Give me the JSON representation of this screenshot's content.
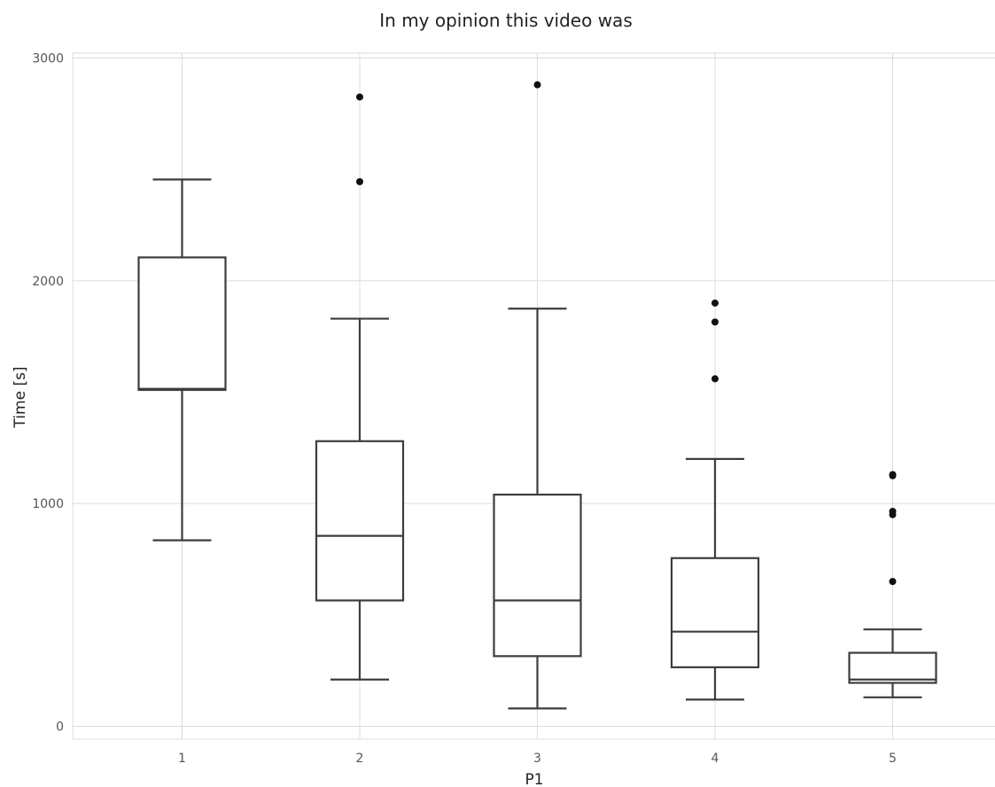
{
  "chart_data": {
    "type": "box",
    "title": "In my opinion this video was",
    "xlabel": "P1",
    "ylabel": "Time [s]",
    "categories": [
      "1",
      "2",
      "3",
      "4",
      "5"
    ],
    "ylim": [
      -50,
      3030
    ],
    "yticks": [
      0,
      1000,
      2000,
      3000
    ],
    "grid": true,
    "boxes": [
      {
        "category": "1",
        "whisker_low": 835,
        "q1": 1510,
        "median": 1515,
        "q3": 2105,
        "whisker_high": 2455,
        "outliers": []
      },
      {
        "category": "2",
        "whisker_low": 210,
        "q1": 565,
        "median": 855,
        "q3": 1280,
        "whisker_high": 1830,
        "outliers": [
          2445,
          2825
        ]
      },
      {
        "category": "3",
        "whisker_low": 80,
        "q1": 315,
        "median": 565,
        "q3": 1040,
        "whisker_high": 1875,
        "outliers": [
          2880
        ]
      },
      {
        "category": "4",
        "whisker_low": 120,
        "q1": 265,
        "median": 425,
        "q3": 755,
        "whisker_high": 1200,
        "outliers": [
          1560,
          1815,
          1900
        ]
      },
      {
        "category": "5",
        "whisker_low": 130,
        "q1": 195,
        "median": 210,
        "q3": 330,
        "whisker_high": 435,
        "outliers": [
          650,
          950,
          965,
          1125,
          1130
        ]
      }
    ]
  }
}
